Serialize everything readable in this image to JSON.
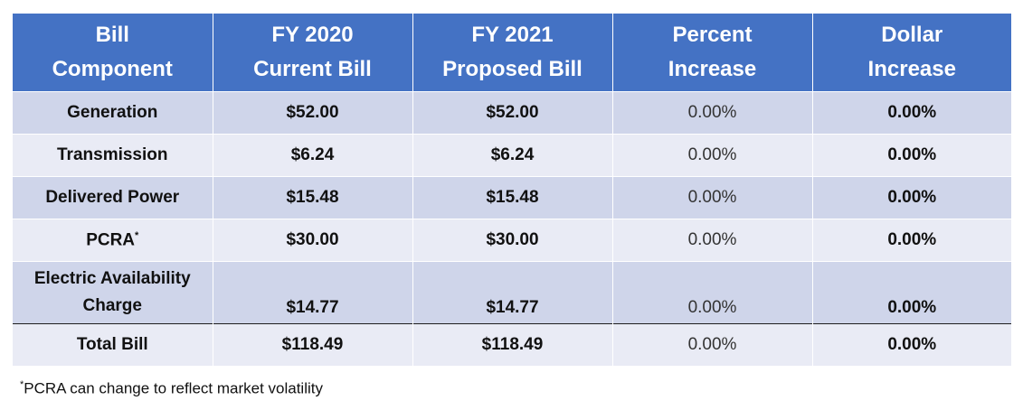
{
  "headers": [
    {
      "line1": "Bill",
      "line2": "Component"
    },
    {
      "line1": "FY 2020",
      "line2": "Current Bill"
    },
    {
      "line1": "FY 2021",
      "line2": "Proposed Bill"
    },
    {
      "line1": "Percent",
      "line2": "Increase"
    },
    {
      "line1": "Dollar",
      "line2": "Increase"
    }
  ],
  "rows": [
    {
      "component": "Generation",
      "fy2020": "$52.00",
      "fy2021": "$52.00",
      "percent": "0.00%",
      "dollar": "0.00%"
    },
    {
      "component": "Transmission",
      "fy2020": "$6.24",
      "fy2021": "$6.24",
      "percent": "0.00%",
      "dollar": "0.00%"
    },
    {
      "component": "Delivered Power",
      "fy2020": "$15.48",
      "fy2021": "$15.48",
      "percent": "0.00%",
      "dollar": "0.00%"
    },
    {
      "component": "PCRA",
      "component_mark": "*",
      "fy2020": "$30.00",
      "fy2021": "$30.00",
      "percent": "0.00%",
      "dollar": "0.00%"
    },
    {
      "component_line1": "Electric Availability",
      "component_line2": "Charge",
      "fy2020": "$14.77",
      "fy2021": "$14.77",
      "percent": "0.00%",
      "dollar": "0.00%"
    }
  ],
  "total": {
    "component": "Total Bill",
    "fy2020": "$118.49",
    "fy2021": "$118.49",
    "percent": "0.00%",
    "dollar": "0.00%"
  },
  "footnote": {
    "mark": "*",
    "text": "PCRA can change to reflect market volatility"
  },
  "colors": {
    "header_bg": "#4472c4",
    "row_dark": "#cfd5ea",
    "row_light": "#e9ebf5"
  }
}
